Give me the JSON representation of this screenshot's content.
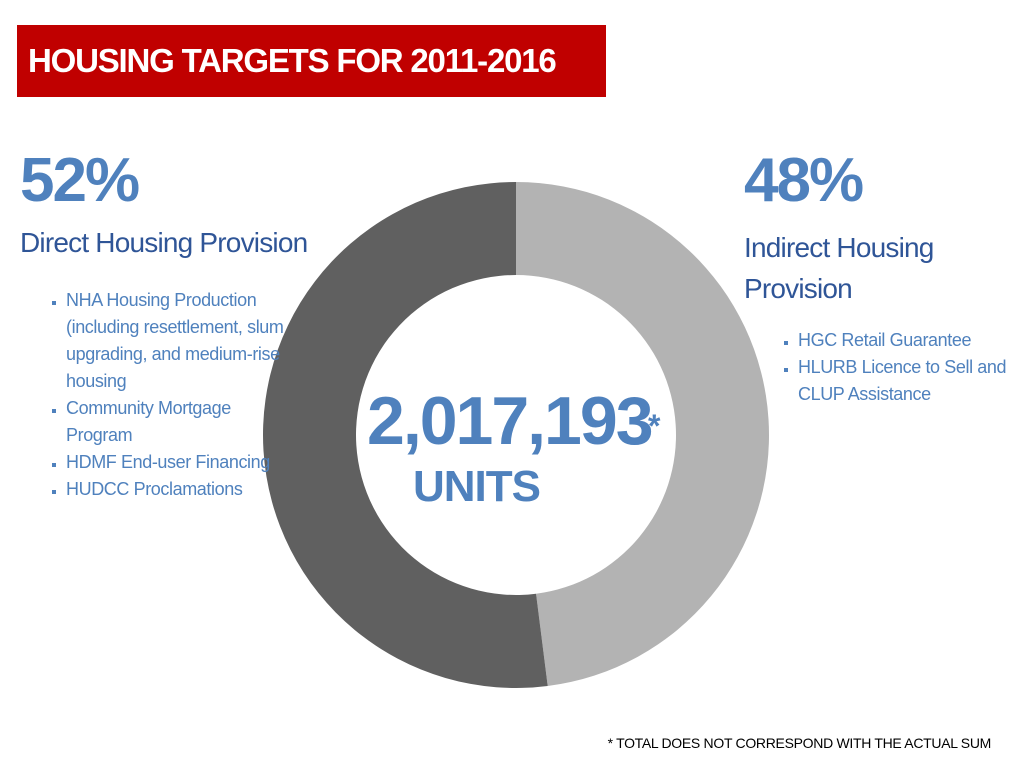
{
  "chart_data": {
    "type": "donut",
    "title": "HOUSING TARGETS FOR 2011-2016",
    "categories": [
      "Direct Housing Provision",
      "Indirect Housing Provision"
    ],
    "values": [
      52,
      48
    ],
    "value_labels": [
      "52%",
      "48%"
    ],
    "colors": [
      "#606060",
      "#b3b3b3"
    ],
    "category_bullets": [
      [
        "NHA Housing Production (including resettlement, slum upgrading, and medium-rise housing",
        "Community Mortgage Program",
        "HDMF End-user Financing",
        "HUDCC Proclamations"
      ],
      [
        "HGC Retail Guarantee",
        "HLURB Licence to Sell and CLUP Assistance"
      ]
    ],
    "center_value": "2,017,193",
    "center_mark": "*",
    "center_unit": "UNITS",
    "footnote": "* TOTAL DOES NOT CORRESPOND WITH THE ACTUAL SUM"
  }
}
